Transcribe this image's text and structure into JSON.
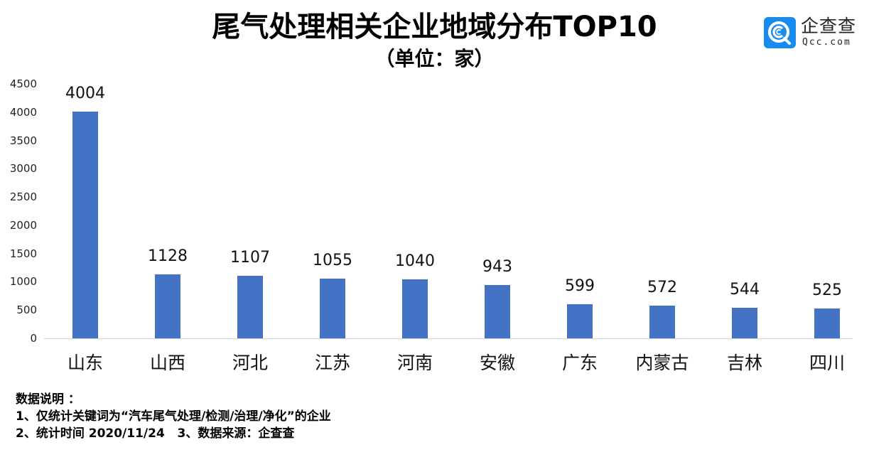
{
  "header": {
    "title": "尾气处理相关企业地域分布TOP10",
    "subtitle": "（单位：家）"
  },
  "logo": {
    "icon": "qcc-logo-icon",
    "name": "企查查",
    "url": "Qcc.com",
    "color": "#1a8cf0"
  },
  "chart_data": {
    "type": "bar",
    "title": "尾气处理相关企业地域分布TOP10",
    "subtitle": "（单位：家）",
    "xlabel": "",
    "ylabel": "",
    "categories": [
      "山东",
      "山西",
      "河北",
      "江苏",
      "河南",
      "安徽",
      "广东",
      "内蒙古",
      "吉林",
      "四川"
    ],
    "values": [
      4004,
      1128,
      1107,
      1055,
      1040,
      943,
      599,
      572,
      544,
      525
    ],
    "value_labels": [
      "4004",
      "1128",
      "1107",
      "1055",
      "1040",
      "943",
      "599",
      "572",
      "544",
      "525"
    ],
    "ylim": [
      0,
      4500
    ],
    "yticks": [
      "0",
      "500",
      "1000",
      "1500",
      "2000",
      "2500",
      "3000",
      "3500",
      "4000",
      "4500"
    ],
    "grid": false,
    "legend": null,
    "bar_color": "#4472C4",
    "data_labels": true
  },
  "notes": {
    "heading": "数据说明 ：",
    "line1": "1、仅统计关键词为“汽车尾气处理/检测/治理/净化”的企业",
    "line2": "2、统计时间 2020/11/24   3、数据来源：企查查"
  }
}
